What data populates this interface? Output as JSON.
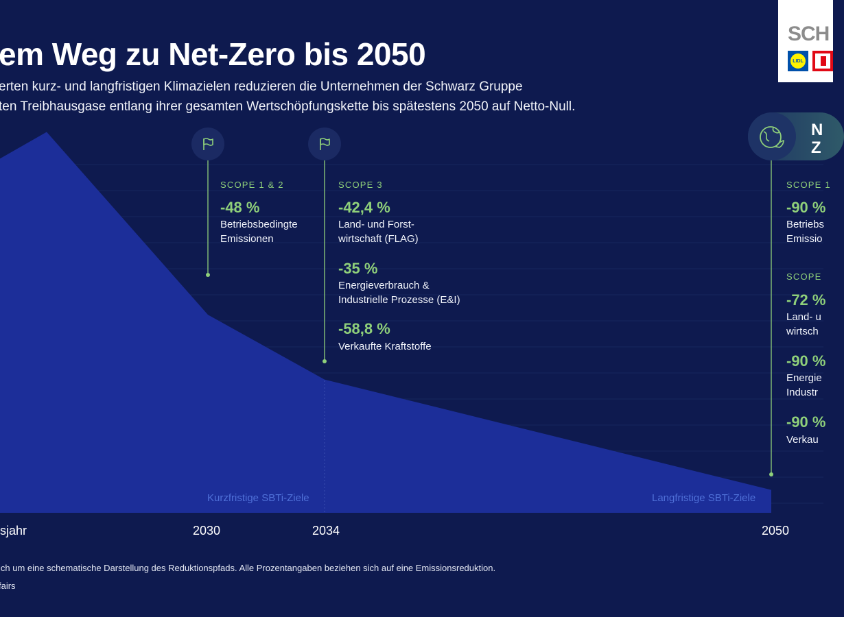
{
  "header": {
    "title": "em Weg zu Net-Zero bis 2050",
    "subtitle_line1": "erten kurz- und langfristigen Klimazielen reduzieren die Unternehmen der Schwarz Gruppe",
    "subtitle_line2": "ten Treibhausgase entlang ihrer gesamten Wertschöpfungskette bis spätestens 2050 auf Netto-Null."
  },
  "logo": {
    "text": "SCH",
    "lidl_text": "LIDL"
  },
  "chart_data": {
    "type": "area",
    "title": "em Weg zu Net-Zero bis 2050",
    "x_labels": [
      "isjahr",
      "2030",
      "2034",
      "2050"
    ],
    "x": [
      "isjahr",
      "2030",
      "2034",
      "2050"
    ],
    "values": [
      100,
      52,
      35,
      6
    ],
    "ylim": [
      0,
      110
    ],
    "note": "schematische Darstellung",
    "period_labels": {
      "short_term": "Kurzfristige SBTi-Ziele",
      "long_term": "Langfristige SBTi-Ziele"
    },
    "milestones": {
      "m2030": {
        "scope": "SCOPE 1 & 2",
        "targets": [
          {
            "pct": "-48 %",
            "line1": "Betriebsbedingte",
            "line2": "Emissionen"
          }
        ]
      },
      "m2034": {
        "scope": "SCOPE 3",
        "targets": [
          {
            "pct": "-42,4 %",
            "line1": "Land- und Forst-",
            "line2": "wirtschaft (FLAG)"
          },
          {
            "pct": "-35 %",
            "line1": "Energieverbrauch &",
            "line2": "Industrielle Prozesse (E&I)"
          },
          {
            "pct": "-58,8 %",
            "line1": "Verkaufte Kraftstoffe"
          }
        ]
      },
      "m2050": {
        "badge_line1": "N",
        "badge_line2": "Z",
        "scope_a": "SCOPE 1",
        "targets_a": [
          {
            "pct": "-90 %",
            "line1": "Betriebs",
            "line2": "Emissio"
          }
        ],
        "scope_b": "SCOPE",
        "targets_b": [
          {
            "pct": "-72 %",
            "line1": "Land- u",
            "line2": "wirtsch"
          },
          {
            "pct": "-90 %",
            "line1": "Energie",
            "line2": "Industr"
          },
          {
            "pct": "-90 %",
            "line1": "Verkau"
          }
        ]
      }
    }
  },
  "footer": {
    "note": "ich um eine schematische Darstellung des Reduktionspfads. Alle Prozentangaben beziehen sich auf eine Emissionsreduktion.",
    "source": "fairs"
  },
  "colors": {
    "background": "#0e1a4f",
    "area": "#1c2e99",
    "accent_green": "#8fd07a",
    "sbti_label": "#4f70d8"
  }
}
